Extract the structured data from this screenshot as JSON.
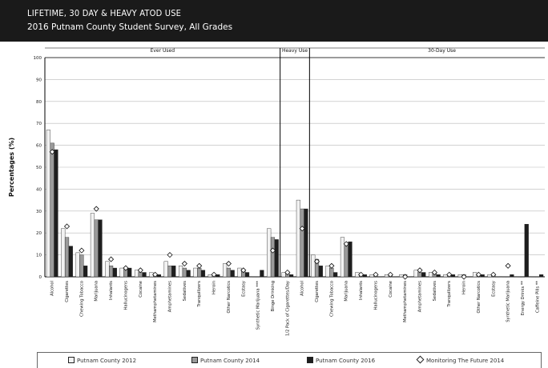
{
  "banner": {
    "title": "LIFETIME, 30 DAY & HEAVY ATOD USE",
    "subtitle": "2016 Putnam County Student Survey, All Grades"
  },
  "chart_data": {
    "type": "bar",
    "ylabel": "Percentages (%)",
    "ylim": [
      0,
      100
    ],
    "yticks": [
      0,
      10,
      20,
      30,
      40,
      50,
      60,
      70,
      80,
      90,
      100
    ],
    "grid": true,
    "legend_position": "bottom",
    "sections": [
      {
        "label": "Ever Used",
        "start": 0,
        "end": 15
      },
      {
        "label": "Heavy Use",
        "start": 16,
        "end": 17
      },
      {
        "label": "30-Day Use",
        "start": 18,
        "end": 35
      }
    ],
    "categories": [
      "Alcohol",
      "Cigarettes",
      "Chewing Tobacco",
      "Marijuana",
      "Inhalants",
      "Hallucinogens",
      "Cocaine",
      "Methamphetamines",
      "Amphetamines",
      "Sedatives",
      "Tranquilizers",
      "Heroin",
      "Other Narcotics",
      "Ecstasy",
      "Synthetic Marijuana ***",
      "Binge Drinking",
      "1/2 Pack of Cigarettes/Day",
      "Alcohol",
      "Cigarettes",
      "Chewing Tobacco",
      "Marijuana",
      "Inhalants",
      "Hallucinogens",
      "Cocaine",
      "Methamphetamines",
      "Amphetamines",
      "Sedatives",
      "Tranquilizers",
      "Heroin",
      "Other Narcotics",
      "Ecstasy",
      "Synthetic Marijuana",
      "Energy Drinks **",
      "Caffeine Pills **"
    ],
    "series": [
      {
        "name": "Putnam County 2012",
        "type": "bar",
        "color": "#f2f2f2",
        "values": [
          67,
          22,
          11,
          29,
          7,
          4,
          3,
          2,
          7,
          5,
          4,
          1,
          6,
          4,
          0,
          22,
          2,
          35,
          10,
          5,
          18,
          2,
          1,
          1,
          1,
          3,
          2,
          1,
          1,
          2,
          1,
          0,
          0,
          0
        ]
      },
      {
        "name": "Putnam County 2014",
        "type": "bar",
        "color": "#9a9a9a",
        "values": [
          61,
          18,
          10,
          26,
          5,
          4,
          2,
          1,
          5,
          4,
          4,
          1,
          4,
          3,
          0,
          18,
          2,
          31,
          8,
          4,
          14,
          1,
          1,
          1,
          1,
          2,
          2,
          1,
          1,
          1,
          1,
          0,
          0,
          0
        ]
      },
      {
        "name": "Putnam County 2016",
        "type": "bar",
        "color": "#1e1e1e",
        "values": [
          58,
          14,
          5,
          26,
          4,
          4,
          2,
          1,
          5,
          3,
          3,
          1,
          3,
          2,
          3,
          17,
          1,
          31,
          5,
          2,
          16,
          1,
          0,
          0,
          0,
          2,
          1,
          1,
          0,
          1,
          0,
          1,
          24,
          1
        ]
      },
      {
        "name": "Monitoring The Future 2014",
        "type": "marker",
        "color": "#ffffff",
        "values": [
          57,
          23,
          12,
          31,
          8,
          4,
          3,
          1,
          10,
          6,
          5,
          1,
          6,
          3,
          null,
          12,
          2,
          22,
          7,
          5,
          15,
          1,
          1,
          1,
          0,
          3,
          2,
          1,
          0,
          1,
          1,
          5,
          null,
          null
        ]
      }
    ]
  }
}
